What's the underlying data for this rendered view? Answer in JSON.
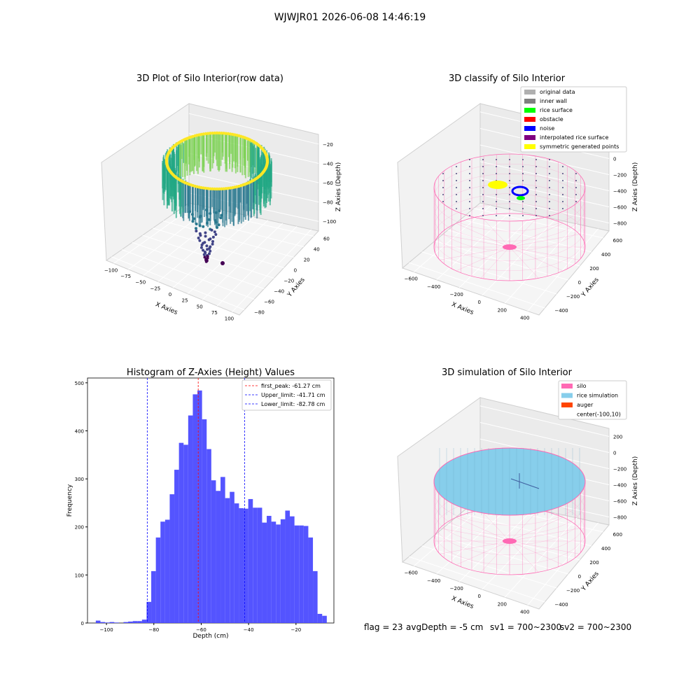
{
  "figure": {
    "suptitle": "WJWJR01 2026-06-08 14:46:19"
  },
  "footer": {
    "flag": "flag = 23",
    "avg_depth": "avgDepth = -5 cm",
    "sv1": "sv1 = 700~2300",
    "sv2": "sv2 = 700~2300"
  },
  "colors": {
    "silo": "#ff69b4",
    "rice_sim": "#87ceeb",
    "auger": "#ff4500",
    "original": "#b0b0b0",
    "inner_wall": "#808080",
    "rice_surface": "#00ff00",
    "obstacle": "#ff0000",
    "noise": "#0000ff",
    "interpolated": "#800080",
    "symmetric": "#ffff00",
    "hist_bar": "#4b4bff",
    "peak_line": "#ff0000",
    "limit_line": "#0000ff"
  },
  "chart_data": [
    {
      "type": "scatter",
      "title": "3D Plot of Silo Interior(row data)",
      "xlabel": "X Axies",
      "ylabel": "Y Axies",
      "zlabel": "Z Axies (Depth)",
      "x_ticks": [
        "−100",
        "−75",
        "−50",
        "−25",
        "0",
        "25",
        "50",
        "75",
        "100"
      ],
      "y_ticks": [
        "−80",
        "−60",
        "−40",
        "−20",
        "0",
        "20",
        "40",
        "60"
      ],
      "z_ticks": [
        "−100",
        "−80",
        "−60",
        "−40",
        "−20"
      ],
      "xlim": [
        -100,
        100
      ],
      "ylim": [
        -85,
        65
      ],
      "zlim": [
        -110,
        -5
      ],
      "colormap": "viridis"
    },
    {
      "type": "scatter",
      "title": "3D classify of Silo Interior",
      "xlabel": "X Axies",
      "ylabel": "Y Axies",
      "zlabel": "Z Axies (Depth)",
      "x_ticks": [
        "−600",
        "−400",
        "−200",
        "0",
        "200",
        "400"
      ],
      "y_ticks": [
        "−400",
        "−200",
        "0",
        "200",
        "400",
        "600"
      ],
      "z_ticks": [
        "−800",
        "−600",
        "−400",
        "−200",
        "0",
        "200"
      ],
      "legend_position": "top-right",
      "legend": [
        {
          "label": "original data",
          "color": "#b0b0b0"
        },
        {
          "label": "inner wall",
          "color": "#808080"
        },
        {
          "label": "rice surface",
          "color": "#00ff00"
        },
        {
          "label": "obstacle",
          "color": "#ff0000"
        },
        {
          "label": "noise",
          "color": "#0000ff"
        },
        {
          "label": "interpolated rice surface",
          "color": "#800080"
        },
        {
          "label": "symmetric generated points",
          "color": "#ffff00"
        }
      ]
    },
    {
      "type": "bar",
      "title": "Histogram of Z-Axies (Height) Values",
      "xlabel": "Depth (cm)",
      "ylabel": "Frequency",
      "xlim": [
        -108,
        -4
      ],
      "ylim": [
        0,
        510
      ],
      "x_ticks": [
        -100,
        -80,
        -60,
        -40,
        -20
      ],
      "y_ticks": [
        0,
        100,
        200,
        300,
        400,
        500
      ],
      "bin_start": -104.5,
      "bin_width": 1.95,
      "values": [
        5,
        2,
        1,
        2,
        1,
        0,
        2,
        3,
        4,
        4,
        7,
        44,
        108,
        178,
        211,
        215,
        268,
        319,
        375,
        371,
        432,
        476,
        484,
        424,
        362,
        297,
        275,
        304,
        260,
        273,
        249,
        239,
        238,
        258,
        240,
        240,
        209,
        223,
        211,
        205,
        216,
        234,
        222,
        203,
        203,
        202,
        178,
        108,
        19,
        15
      ],
      "lines": [
        {
          "label": "first_peak: -61.27 cm",
          "x": -61.27,
          "color": "#ff0000"
        },
        {
          "label": "Upper_limit: -41.71 cm",
          "x": -41.71,
          "color": "#0000ff"
        },
        {
          "label": "Lower_limit: -82.78 cm",
          "x": -82.78,
          "color": "#0000ff"
        }
      ],
      "legend_position": "top-right"
    },
    {
      "type": "scatter",
      "title": "3D simulation of Silo Interior",
      "xlabel": "X Axies",
      "ylabel": "Y Axies",
      "zlabel": "Z Axies (Depth)",
      "x_ticks": [
        "−600",
        "−400",
        "−200",
        "0",
        "200",
        "400"
      ],
      "y_ticks": [
        "−400",
        "−200",
        "0",
        "200",
        "400",
        "600"
      ],
      "z_ticks": [
        "−800",
        "−600",
        "−400",
        "−200",
        "0",
        "200"
      ],
      "legend_position": "top-right",
      "legend": [
        {
          "label": "silo",
          "color": "#ff69b4"
        },
        {
          "label": "rice simulation",
          "color": "#87ceeb"
        },
        {
          "label": "auger",
          "color": "#ff4500"
        },
        {
          "label": "center(-100,10)",
          "color": ""
        }
      ]
    }
  ]
}
